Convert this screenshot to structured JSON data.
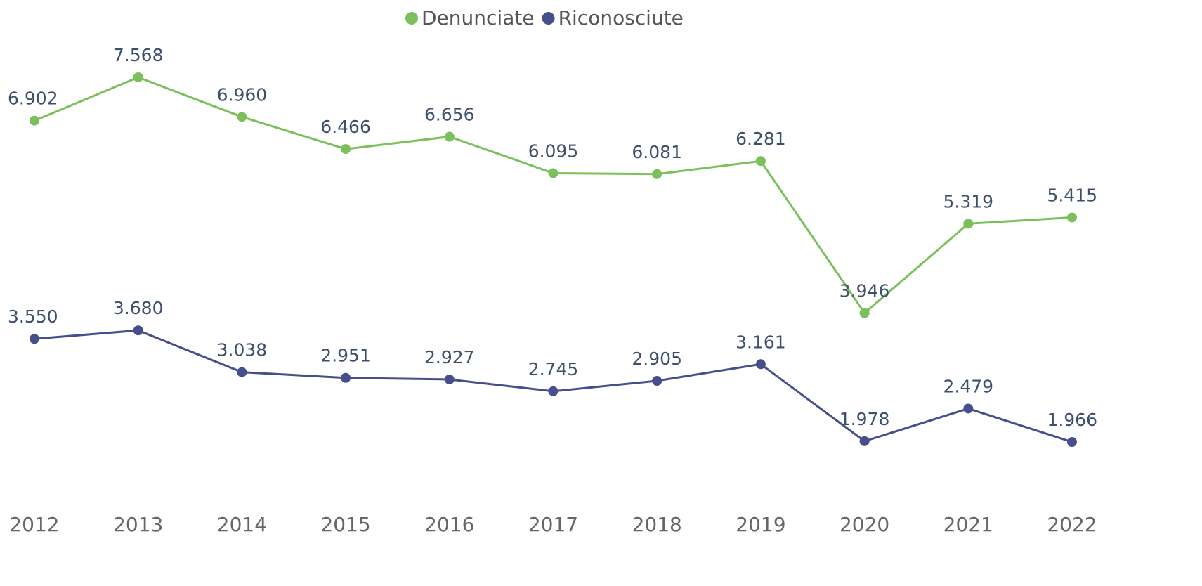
{
  "chart_data": {
    "type": "line",
    "categories": [
      "2012",
      "2013",
      "2014",
      "2015",
      "2016",
      "2017",
      "2018",
      "2019",
      "2020",
      "2021",
      "2022"
    ],
    "series": [
      {
        "name": "Denunciate",
        "color": "#7cc05c",
        "values": [
          6902,
          7568,
          6960,
          6466,
          6656,
          6095,
          6081,
          6281,
          3946,
          5319,
          5415
        ],
        "value_labels": [
          "6.902",
          "7.568",
          "6.960",
          "6.466",
          "6.656",
          "6.095",
          "6.081",
          "6.281",
          "3.946",
          "5.319",
          "5.415"
        ]
      },
      {
        "name": "Riconosciute",
        "color": "#464f8c",
        "values": [
          3550,
          3680,
          3038,
          2951,
          2927,
          2745,
          2905,
          3161,
          1978,
          2479,
          1966
        ],
        "value_labels": [
          "3.550",
          "3.680",
          "3.038",
          "2.951",
          "2.927",
          "2.745",
          "2.905",
          "3.161",
          "1.978",
          "2.479",
          "1.966"
        ]
      }
    ],
    "legend": "top"
  }
}
